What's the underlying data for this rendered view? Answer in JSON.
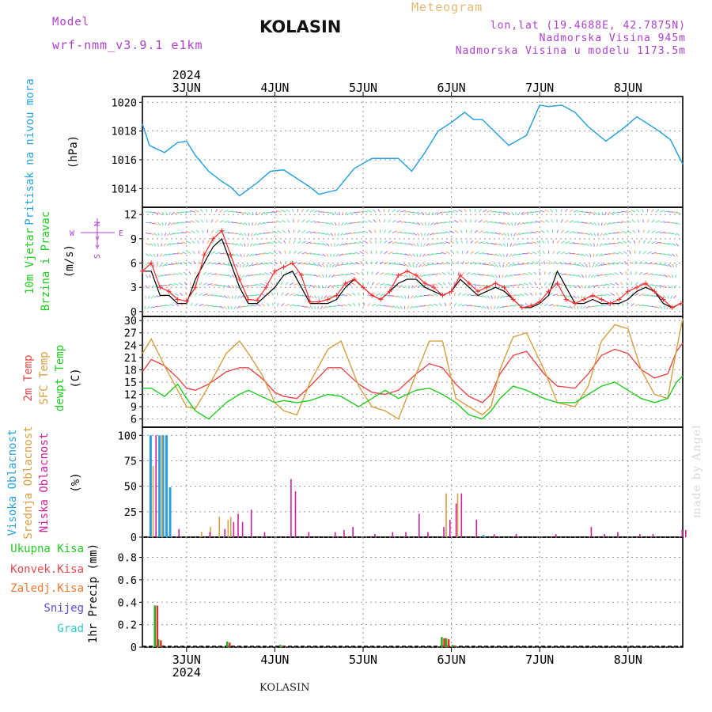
{
  "header": {
    "model_label": "Model",
    "model_name": "wrf-nmm_v3.9.1  e1km",
    "station": "KOLASIN",
    "product": "Meteogram",
    "coords": "lon,lat (19.4688E, 42.7875N)",
    "elev": "Nadmorska Visina 945m",
    "elev_model": "Nadmorska Visina u modelu 1173.5m"
  },
  "footer": {
    "station": "KOLASIN",
    "credit": "made by Angel"
  },
  "colors": {
    "pressure": "#2ba3e0",
    "wind_speed": "#ff2a2a",
    "wind_gust": "#000000",
    "t2m": "#e84848",
    "sfc": "#d8a040",
    "dew": "#20cc20",
    "cloud_high": "#2b9fe0",
    "cloud_mid": "#d8a040",
    "cloud_low": "#d020a0",
    "precip_total": "#20b020",
    "precip_conv": "#e03030"
  },
  "time_axis": {
    "year": "2024",
    "ticks": [
      {
        "label": "3JUN",
        "x": 0.5
      },
      {
        "label": "4JUN",
        "x": 1.5
      },
      {
        "label": "5JUN",
        "x": 2.5
      },
      {
        "label": "6JUN",
        "x": 3.5
      },
      {
        "label": "7JUN",
        "x": 4.5
      },
      {
        "label": "8JUN",
        "x": 5.5
      }
    ],
    "xlim": [
      0,
      6.12
    ]
  },
  "panels": {
    "pressure": {
      "label": "Pritisak na nivou mora",
      "unit": "(hPa)"
    },
    "wind": {
      "label1": "10m Vjetar",
      "label2": "Brzina i Pravac",
      "unit": "(m/s)",
      "compass": {
        "n": "N",
        "s": "S",
        "w": "W",
        "e": "E"
      }
    },
    "temp": {
      "l1": "2m Temp",
      "l2": "SFC Temp",
      "l3": "dewpt Temp",
      "unit": "(C)"
    },
    "cloud": {
      "l1": "Visoka Oblacnost",
      "l2": "Srednja Oblacnost",
      "l3": "Niska Oblacnost",
      "unit": "(%)"
    },
    "precip": {
      "l1": "Ukupna Kisa",
      "l2": "Konvek.Kisa",
      "l3": "Zaledj.Kisa",
      "l4": "Snijeg",
      "l5": "Grad",
      "unit": "1hr Precip (mm)"
    }
  },
  "chart_data": [
    {
      "type": "line",
      "title": "Pritisak na nivou mora",
      "ylabel": "(hPa)",
      "ylim": [
        1012.7,
        1020.4
      ],
      "yticks": [
        1014,
        1016,
        1018,
        1020
      ],
      "x": [
        0,
        0.08,
        0.25,
        0.4,
        0.5,
        0.6,
        0.75,
        0.9,
        1.0,
        1.1,
        1.3,
        1.45,
        1.6,
        1.75,
        1.9,
        2.0,
        2.2,
        2.4,
        2.6,
        2.75,
        2.9,
        3.05,
        3.2,
        3.35,
        3.5,
        3.65,
        3.75,
        3.85,
        3.95,
        4.15,
        4.35,
        4.5,
        4.6,
        4.75,
        4.9,
        5.05,
        5.25,
        5.45,
        5.6,
        5.7,
        5.85,
        5.98,
        6.12
      ],
      "series": [
        {
          "name": "Pritisak na nivou mora",
          "values": [
            1018.5,
            1017.0,
            1016.5,
            1017.2,
            1017.3,
            1016.3,
            1015.2,
            1014.5,
            1014.1,
            1013.5,
            1014.4,
            1015.2,
            1015.3,
            1014.7,
            1014.1,
            1013.6,
            1013.9,
            1015.4,
            1016.1,
            1016.1,
            1016.1,
            1015.2,
            1016.5,
            1018.0,
            1018.6,
            1019.3,
            1018.8,
            1018.8,
            1018.2,
            1017.0,
            1017.7,
            1019.8,
            1019.7,
            1019.8,
            1019.3,
            1018.3,
            1017.3,
            1018.2,
            1019.0,
            1018.6,
            1018.0,
            1017.4,
            1015.7
          ]
        }
      ]
    },
    {
      "type": "line",
      "title": "10m Vjetar Brzina i Pravac",
      "ylabel": "(m/s)",
      "ylim": [
        -0.6,
        12.9
      ],
      "yticks": [
        0,
        3,
        6,
        9,
        12
      ],
      "x": [
        0,
        0.1,
        0.2,
        0.3,
        0.4,
        0.5,
        0.6,
        0.7,
        0.8,
        0.9,
        1.0,
        1.1,
        1.2,
        1.3,
        1.4,
        1.5,
        1.6,
        1.7,
        1.8,
        1.9,
        2.0,
        2.1,
        2.2,
        2.3,
        2.4,
        2.5,
        2.6,
        2.7,
        2.8,
        2.9,
        3.0,
        3.1,
        3.2,
        3.3,
        3.4,
        3.5,
        3.6,
        3.7,
        3.8,
        3.9,
        4.0,
        4.1,
        4.2,
        4.3,
        4.4,
        4.5,
        4.6,
        4.7,
        4.8,
        4.9,
        5.0,
        5.1,
        5.2,
        5.3,
        5.4,
        5.5,
        5.6,
        5.7,
        5.8,
        5.9,
        6.0,
        6.1
      ],
      "series": [
        {
          "name": "speed",
          "values": [
            5,
            6,
            3,
            2.5,
            1.5,
            1.3,
            3,
            7,
            9,
            10,
            7,
            4,
            1.5,
            1.4,
            3,
            5,
            5.5,
            6,
            4.5,
            1.2,
            1.2,
            1.5,
            2,
            3.5,
            4,
            3,
            2,
            1.5,
            2.5,
            4.5,
            5,
            4.5,
            3.5,
            3,
            2,
            2.5,
            4.5,
            3.5,
            2.5,
            3,
            3.5,
            3,
            1.5,
            0.5,
            0.7,
            1.2,
            2.5,
            3.5,
            1.5,
            1,
            1.5,
            2,
            1.5,
            1,
            1.5,
            2.5,
            3,
            3.5,
            2.5,
            1.5,
            0.5,
            1
          ]
        },
        {
          "name": "gust",
          "values": [
            5,
            5,
            2,
            2,
            1,
            1,
            4,
            6,
            8,
            9,
            6,
            3,
            1,
            1,
            2,
            3,
            4.5,
            5,
            3,
            1,
            1,
            1,
            1.5,
            3,
            4,
            3,
            2,
            1.5,
            2.5,
            3.5,
            4,
            4,
            3,
            2.5,
            2,
            2.5,
            4,
            3,
            2,
            2.5,
            3,
            2.5,
            1.5,
            0.5,
            0.5,
            1,
            2,
            5,
            3,
            1,
            1,
            1.5,
            1,
            1,
            1,
            1.5,
            2.5,
            3,
            2.5,
            1,
            0.5,
            1
          ]
        }
      ]
    },
    {
      "type": "line",
      "title": "2m Temp / SFC Temp / dewpt Temp",
      "ylabel": "(C)",
      "ylim": [
        4,
        31
      ],
      "yticks": [
        6,
        9,
        12,
        15,
        18,
        21,
        24,
        27,
        30
      ],
      "x": [
        0,
        0.1,
        0.25,
        0.4,
        0.5,
        0.6,
        0.75,
        0.95,
        1.1,
        1.2,
        1.35,
        1.5,
        1.6,
        1.75,
        1.9,
        2.1,
        2.25,
        2.45,
        2.6,
        2.75,
        2.9,
        3.1,
        3.25,
        3.4,
        3.55,
        3.7,
        3.85,
        3.95,
        4.05,
        4.2,
        4.35,
        4.55,
        4.7,
        4.9,
        5.05,
        5.2,
        5.35,
        5.5,
        5.65,
        5.8,
        5.95,
        6.05,
        6.12
      ],
      "series": [
        {
          "name": "2m Temp",
          "values": [
            17.5,
            20.5,
            19,
            16,
            13.5,
            13,
            14.5,
            17.5,
            18.5,
            18.5,
            16,
            12.5,
            11.5,
            11,
            14,
            18.5,
            18.5,
            14.5,
            12.5,
            12,
            13,
            17,
            19.5,
            18.5,
            14.5,
            11.5,
            10,
            12,
            17,
            21.5,
            22.5,
            17,
            14,
            13.5,
            17,
            21.5,
            23,
            22,
            18,
            16,
            17,
            22.5,
            24.5
          ]
        },
        {
          "name": "SFC Temp",
          "values": [
            22,
            25.5,
            19,
            13,
            9,
            8.5,
            14,
            22,
            25,
            22,
            17,
            10,
            8,
            7,
            15,
            23,
            25,
            14,
            9,
            8,
            6,
            17,
            25,
            25,
            11,
            9,
            7,
            9,
            18,
            26,
            27,
            18,
            10,
            9,
            14,
            25,
            29,
            28,
            18,
            12,
            11,
            23,
            30.5
          ]
        },
        {
          "name": "dewpt Temp",
          "values": [
            13.5,
            13.5,
            11.5,
            14.5,
            11,
            8,
            6,
            10,
            12,
            13,
            11.5,
            10,
            10.5,
            10,
            10.5,
            12,
            11.5,
            9,
            11,
            13,
            11,
            13,
            13.5,
            12,
            10,
            7,
            6,
            8,
            11,
            14,
            13,
            11,
            10,
            10,
            12,
            14,
            15,
            13,
            11,
            10,
            11,
            15,
            16.5
          ]
        }
      ]
    },
    {
      "type": "bar",
      "title": "Oblacnost",
      "ylabel": "(%)",
      "ylim": [
        0,
        108
      ],
      "yticks": [
        0,
        25,
        50,
        75,
        100
      ],
      "series": [
        {
          "name": "Visoka Oblacnost",
          "x": [
            0.08,
            0.18,
            0.22,
            0.26,
            0.3,
            3.85
          ],
          "values": [
            100,
            100,
            100,
            100,
            49,
            2
          ]
        },
        {
          "name": "Srednja Oblacnost",
          "x": [
            0.1,
            0.2,
            0.65,
            0.75,
            0.85,
            0.95,
            0.98,
            3.42,
            3.55
          ],
          "values": [
            70,
            100,
            5,
            10,
            20,
            17,
            20,
            43,
            43
          ]
        },
        {
          "name": "Niska Oblacnost",
          "x": [
            0.12,
            0.38,
            0.73,
            0.9,
            1.0,
            1.05,
            1.1,
            1.2,
            1.35,
            1.65,
            1.7,
            1.85,
            2.15,
            2.25,
            2.35,
            2.6,
            2.8,
            2.95,
            3.1,
            3.2,
            3.38,
            3.45,
            3.52,
            3.58,
            3.75,
            3.95,
            4.2,
            4.65,
            5.05,
            5.2,
            5.35,
            5.6,
            5.75,
            6.08,
            6.12
          ],
          "values": [
            100,
            8,
            5,
            8,
            15,
            23,
            15,
            27,
            5,
            57,
            45,
            5,
            5,
            7,
            10,
            3,
            5,
            5,
            23,
            5,
            10,
            17,
            33,
            43,
            17,
            3,
            3,
            3,
            10,
            3,
            5,
            3,
            3,
            7,
            7
          ]
        }
      ]
    },
    {
      "type": "bar",
      "title": "1hr Precip",
      "ylabel": "1hr Precip (mm)",
      "ylim": [
        0,
        0.98
      ],
      "yticks": [
        0,
        0.2,
        0.4,
        0.6,
        0.8
      ],
      "series": [
        {
          "name": "Ukupna Kisa",
          "x": [
            0.13,
            0.17,
            0.95,
            1.55,
            3.38,
            3.43,
            3.5
          ],
          "values": [
            0.37,
            0.07,
            0.05,
            0.02,
            0.09,
            0.08,
            0.02
          ]
        },
        {
          "name": "Konvek.Kisa",
          "x": [
            0.14,
            0.18,
            0.96,
            1.56,
            3.39,
            3.44,
            3.51
          ],
          "values": [
            0.37,
            0.06,
            0.04,
            0.01,
            0.08,
            0.07,
            0.01
          ]
        }
      ]
    }
  ]
}
